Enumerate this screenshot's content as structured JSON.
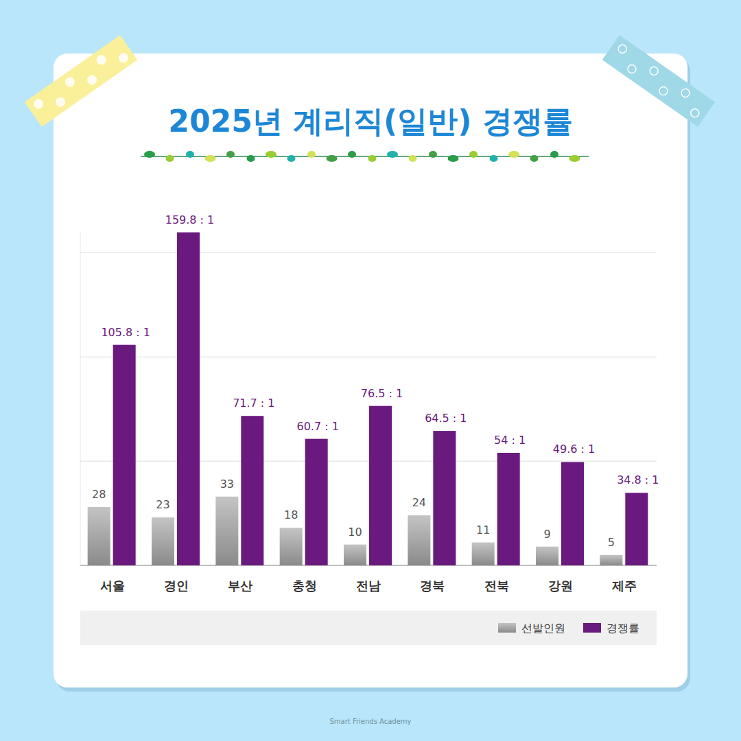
{
  "chart_data": {
    "type": "bar",
    "title": "2025년 계리직(일반) 경쟁률",
    "categories": [
      "서울",
      "경인",
      "부산",
      "충청",
      "전남",
      "경북",
      "전북",
      "강원",
      "제주"
    ],
    "series": [
      {
        "name": "선발인원",
        "color": "#9e9e9e",
        "values": [
          28,
          23,
          33,
          18,
          10,
          24,
          11,
          9,
          5
        ]
      },
      {
        "name": "경쟁률",
        "color": "#6a1a7e",
        "values": [
          105.8,
          159.8,
          71.7,
          60.7,
          76.5,
          64.5,
          54,
          49.6,
          34.8
        ],
        "value_labels": [
          "105.8 : 1",
          "159.8 : 1",
          "71.7 : 1",
          "60.7 : 1",
          "76.5 : 1",
          "64.5 : 1",
          "54 : 1",
          "49.6 : 1",
          "34.8 : 1"
        ]
      }
    ],
    "ylim": [
      0,
      160
    ],
    "yticks": [
      0,
      50,
      100,
      150
    ],
    "grid": true,
    "tick_labels": false,
    "data_labels": true,
    "legend": "bottom-right",
    "annotations": [
      "Smart Friends Academy"
    ]
  }
}
